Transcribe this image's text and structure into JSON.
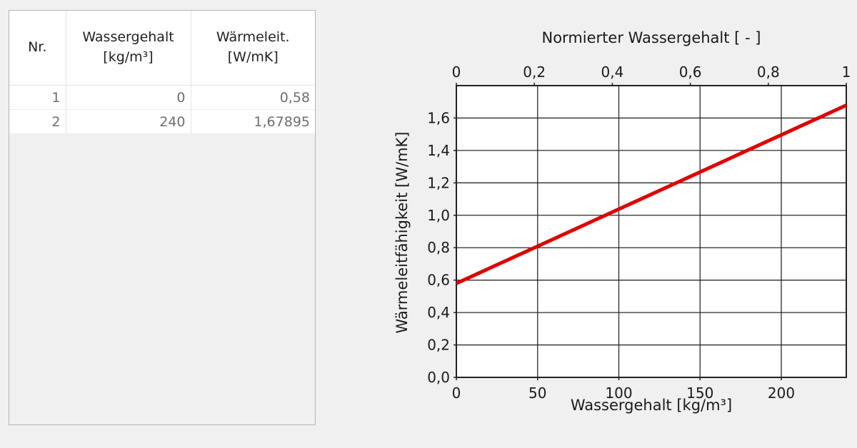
{
  "table": {
    "headers": [
      {
        "line1": "Nr.",
        "line2": ""
      },
      {
        "line1": "Wassergehalt",
        "line2": "[kg/m³]"
      },
      {
        "line1": "Wärmeleit.",
        "line2": "[W/mK]"
      }
    ],
    "rows": [
      [
        "1",
        "0",
        "0,58"
      ],
      [
        "2",
        "240",
        "1,67895"
      ]
    ]
  },
  "chart_data": {
    "type": "line",
    "xlabel": "Wassergehalt [kg/m³]",
    "ylabel": "Wärmeleitfähigkeit [W/mK]",
    "x2label": "Normierter Wassergehalt [ - ]",
    "xlim": [
      0,
      240
    ],
    "ylim": [
      0,
      1.8
    ],
    "x2lim": [
      0,
      1
    ],
    "xticks": [
      0,
      50,
      100,
      150,
      200
    ],
    "xtick_labels": [
      "0",
      "50",
      "100",
      "150",
      "200"
    ],
    "yticks": [
      0,
      0.2,
      0.4,
      0.6,
      0.8,
      1.0,
      1.2,
      1.4,
      1.6
    ],
    "ytick_labels": [
      "0,0",
      "0,2",
      "0,4",
      "0,6",
      "0,8",
      "1,0",
      "1,2",
      "1,4",
      "1,6"
    ],
    "x2ticks": [
      0,
      0.2,
      0.4,
      0.6,
      0.8,
      1
    ],
    "x2tick_labels": [
      "0",
      "0,2",
      "0,4",
      "0,6",
      "0,8",
      "1"
    ],
    "grid": true,
    "series": [
      {
        "x": [
          0,
          240
        ],
        "y": [
          0.58,
          1.67895
        ],
        "color": "#e00000"
      }
    ]
  }
}
